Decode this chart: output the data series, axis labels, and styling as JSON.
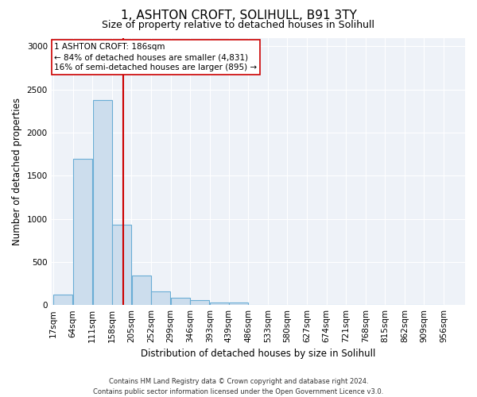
{
  "title_line1": "1, ASHTON CROFT, SOLIHULL, B91 3TY",
  "title_line2": "Size of property relative to detached houses in Solihull",
  "xlabel": "Distribution of detached houses by size in Solihull",
  "ylabel": "Number of detached properties",
  "bin_labels": [
    "17sqm",
    "64sqm",
    "111sqm",
    "158sqm",
    "205sqm",
    "252sqm",
    "299sqm",
    "346sqm",
    "393sqm",
    "439sqm",
    "486sqm",
    "533sqm",
    "580sqm",
    "627sqm",
    "674sqm",
    "721sqm",
    "768sqm",
    "815sqm",
    "862sqm",
    "909sqm",
    "956sqm"
  ],
  "bin_edges": [
    17,
    64,
    111,
    158,
    205,
    252,
    299,
    346,
    393,
    439,
    486,
    533,
    580,
    627,
    674,
    721,
    768,
    815,
    862,
    909,
    956
  ],
  "bar_heights": [
    120,
    1700,
    2380,
    935,
    345,
    155,
    80,
    55,
    30,
    30,
    5,
    5,
    5,
    0,
    0,
    0,
    0,
    0,
    0,
    0
  ],
  "bar_color": "#ccdded",
  "bar_edge_color": "#6aadd5",
  "property_size": 186,
  "red_line_color": "#cc0000",
  "annotation_line1": "1 ASHTON CROFT: 186sqm",
  "annotation_line2": "← 84% of detached houses are smaller (4,831)",
  "annotation_line3": "16% of semi-detached houses are larger (895) →",
  "annotation_box_color": "#ffffff",
  "annotation_box_edge": "#cc0000",
  "ylim": [
    0,
    3100
  ],
  "yticks": [
    0,
    500,
    1000,
    1500,
    2000,
    2500,
    3000
  ],
  "background_color": "#eef2f8",
  "footer_text": "Contains HM Land Registry data © Crown copyright and database right 2024.\nContains public sector information licensed under the Open Government Licence v3.0.",
  "title_fontsize": 11,
  "subtitle_fontsize": 9,
  "axis_label_fontsize": 8.5,
  "tick_fontsize": 7.5,
  "annotation_fontsize": 7.5,
  "footer_fontsize": 6
}
